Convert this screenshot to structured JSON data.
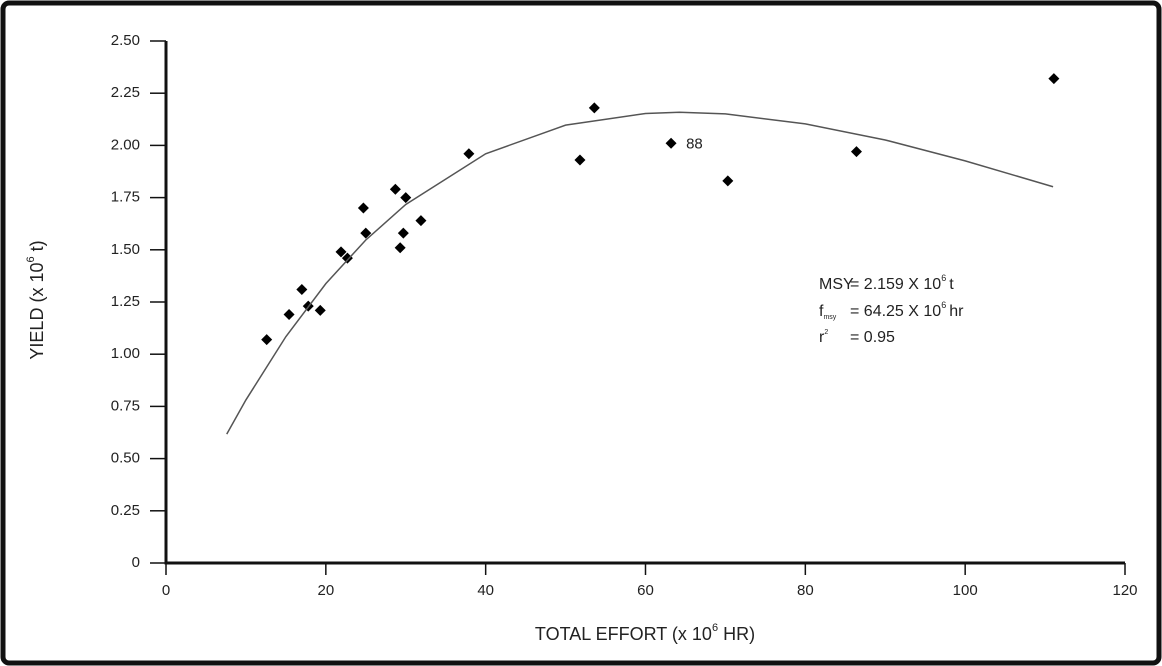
{
  "chart_data": {
    "type": "scatter",
    "x_title": [
      "TOTAL EFFORT (x 10",
      "6",
      " HR)"
    ],
    "y_title": [
      "YIELD (x 10",
      "6",
      " t)"
    ],
    "xlim": [
      0,
      120
    ],
    "ylim": [
      0,
      2.5
    ],
    "xticks": [
      0,
      20,
      40,
      60,
      80,
      100,
      120
    ],
    "yticks": [
      0,
      0.25,
      {
        "value": 0.5,
        "label": "0.50"
      },
      0.75,
      {
        "value": 1,
        "label": "1.00"
      },
      1.25,
      {
        "value": 1.5,
        "label": "1.50"
      },
      1.75,
      {
        "value": 2,
        "label": "2.00"
      },
      2.25,
      {
        "value": 2.5,
        "label": "2.50"
      }
    ],
    "series": [
      {
        "type": "scatter",
        "color": "#000000",
        "x": [
          12.6,
          15.4,
          17.0,
          17.8,
          19.3,
          21.9,
          22.7,
          24.7,
          25.0,
          28.7,
          29.3,
          29.7,
          30.0,
          31.9,
          37.9,
          51.8,
          53.6,
          63.2,
          70.3,
          86.4,
          111.1
        ],
        "values": [
          1.07,
          1.19,
          1.31,
          1.23,
          1.21,
          1.49,
          1.46,
          1.7,
          1.58,
          1.79,
          1.51,
          1.58,
          1.75,
          1.64,
          1.96,
          1.93,
          2.18,
          2.01,
          1.83,
          1.97,
          2.32
        ],
        "point_labels": [
          null,
          null,
          null,
          null,
          null,
          null,
          null,
          null,
          null,
          null,
          null,
          null,
          null,
          null,
          null,
          null,
          null,
          "88",
          null,
          null,
          null
        ]
      },
      {
        "type": "line",
        "color": "#555555",
        "x": [
          7.6,
          10,
          15,
          20,
          25,
          30,
          40,
          50,
          60,
          64.25,
          70,
          80,
          90,
          100,
          111
        ],
        "values": [
          0.617,
          0.781,
          1.084,
          1.338,
          1.547,
          1.717,
          1.96,
          2.097,
          2.153,
          2.159,
          2.151,
          2.103,
          2.026,
          1.926,
          1.802
        ]
      }
    ],
    "annotations": [
      {
        "label": "MSY",
        "text": "= 2.159 X 10",
        "sup": "6",
        "unit": "t"
      },
      {
        "label": "f",
        "sub": "msy",
        "text": "= 64.25 X 10",
        "sup": "6",
        "unit": "hr"
      },
      {
        "label": "r",
        "sup": "2",
        "text": "= 0.95"
      }
    ]
  }
}
